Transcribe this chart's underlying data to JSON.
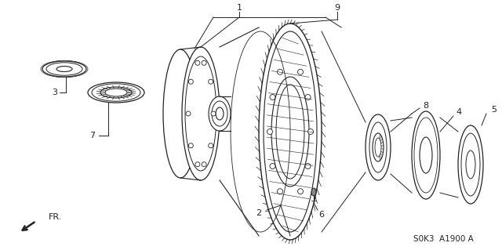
{
  "bg_color": "#ffffff",
  "line_color": "#222222",
  "fig_width": 6.4,
  "fig_height": 3.19,
  "dpi": 100,
  "diagram_code": "S0K3  A1900 A"
}
